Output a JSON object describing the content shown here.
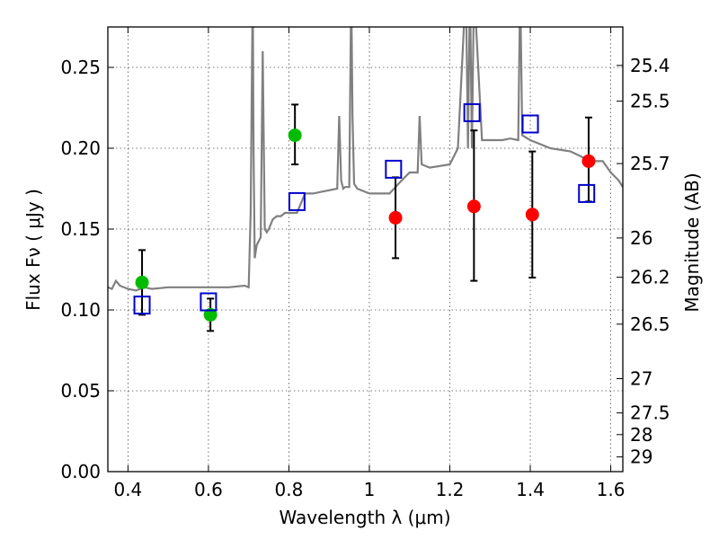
{
  "chart_data": {
    "type": "scatter",
    "title": "",
    "xlabel": "Wavelength  λ (μm)",
    "ylabel": "Flux  Fν  ( μJy )",
    "y2label": "Magnitude (AB)",
    "xlim": [
      0.35,
      1.63
    ],
    "ylim": [
      0.0,
      0.275
    ],
    "grid": true,
    "x_ticks": [
      0.4,
      0.6,
      0.8,
      1.0,
      1.2,
      1.4,
      1.6
    ],
    "x_tick_labels": [
      "0.4",
      "0.6",
      "0.8",
      "1",
      "1.2",
      "1.4",
      "1.6"
    ],
    "y_ticks": [
      0.0,
      0.05,
      0.1,
      0.15,
      0.2,
      0.25
    ],
    "y_tick_labels": [
      "0.00",
      "0.05",
      "0.10",
      "0.15",
      "0.20",
      "0.25"
    ],
    "y2_ticks": [
      {
        "label": "25.4",
        "flux": 0.2512
      },
      {
        "label": "25.5",
        "flux": 0.2291
      },
      {
        "label": "25.7",
        "flux": 0.1905
      },
      {
        "label": "26",
        "flux": 0.1445
      },
      {
        "label": "26.2",
        "flux": 0.1202
      },
      {
        "label": "26.5",
        "flux": 0.0912
      },
      {
        "label": "27",
        "flux": 0.0575
      },
      {
        "label": "27.5",
        "flux": 0.0363
      },
      {
        "label": "28",
        "flux": 0.0229
      },
      {
        "label": "29",
        "flux": 0.0091
      }
    ],
    "series": [
      {
        "kind": "line",
        "color": "#808080",
        "x": [
          0.35,
          0.36,
          0.37,
          0.38,
          0.4,
          0.42,
          0.44,
          0.46,
          0.5,
          0.55,
          0.6,
          0.65,
          0.69,
          0.7,
          0.705,
          0.71,
          0.712,
          0.715,
          0.72,
          0.73,
          0.735,
          0.74,
          0.745,
          0.75,
          0.76,
          0.77,
          0.78,
          0.79,
          0.8,
          0.82,
          0.84,
          0.86,
          0.88,
          0.9,
          0.92,
          0.925,
          0.93,
          0.935,
          0.94,
          0.95,
          0.955,
          0.958,
          0.962,
          0.97,
          1.0,
          1.05,
          1.08,
          1.1,
          1.12,
          1.125,
          1.13,
          1.15,
          1.2,
          1.22,
          1.24,
          1.245,
          1.25,
          1.255,
          1.26,
          1.28,
          1.3,
          1.33,
          1.35,
          1.37,
          1.375,
          1.38,
          1.4,
          1.45,
          1.5,
          1.55,
          1.58,
          1.6,
          1.62,
          1.63
        ],
        "y": [
          0.114,
          0.113,
          0.118,
          0.115,
          0.113,
          0.112,
          0.114,
          0.113,
          0.114,
          0.114,
          0.114,
          0.114,
          0.115,
          0.114,
          0.16,
          0.3,
          0.2,
          0.132,
          0.14,
          0.145,
          0.26,
          0.15,
          0.148,
          0.15,
          0.156,
          0.158,
          0.158,
          0.16,
          0.16,
          0.16,
          0.172,
          0.172,
          0.173,
          0.174,
          0.175,
          0.22,
          0.18,
          0.175,
          0.176,
          0.176,
          0.3,
          0.22,
          0.178,
          0.175,
          0.172,
          0.172,
          0.18,
          0.185,
          0.185,
          0.22,
          0.19,
          0.188,
          0.19,
          0.2,
          0.3,
          0.2,
          0.3,
          0.2,
          0.3,
          0.205,
          0.205,
          0.205,
          0.206,
          0.205,
          0.3,
          0.208,
          0.205,
          0.2,
          0.198,
          0.192,
          0.192,
          0.185,
          0.18,
          0.176
        ]
      },
      {
        "kind": "points",
        "name": "",
        "color": "#00bb00",
        "x": [
          0.435,
          0.605,
          0.815
        ],
        "values": [
          0.117,
          0.097,
          0.208
        ],
        "err_low": [
          0.02,
          0.01,
          0.018
        ],
        "err_high": [
          0.02,
          0.01,
          0.019
        ]
      },
      {
        "kind": "points",
        "name": "",
        "color": "#ff0000",
        "x": [
          1.065,
          1.26,
          1.405,
          1.545
        ],
        "values": [
          0.157,
          0.164,
          0.159,
          0.192
        ],
        "err_low": [
          0.025,
          0.046,
          0.039,
          0.025
        ],
        "err_high": [
          0.025,
          0.047,
          0.039,
          0.027
        ]
      },
      {
        "kind": "open-squares",
        "name": "",
        "color": "#0000cc",
        "x": [
          0.435,
          0.6,
          0.82,
          1.06,
          1.255,
          1.4,
          1.54
        ],
        "values": [
          0.103,
          0.105,
          0.167,
          0.187,
          0.222,
          0.215,
          0.172
        ]
      }
    ]
  }
}
